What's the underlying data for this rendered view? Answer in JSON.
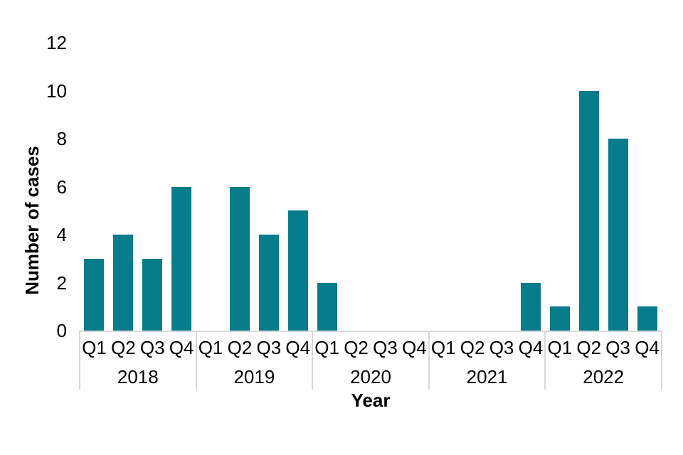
{
  "chart_data": {
    "type": "bar",
    "title": "",
    "ylabel": "Number of cases",
    "xlabel": "Year",
    "ylim": [
      0,
      12
    ],
    "yticks": [
      0,
      2,
      4,
      6,
      8,
      10,
      12
    ],
    "grid": false,
    "legend": false,
    "quarter_labels": [
      "Q1",
      "Q2",
      "Q3",
      "Q4"
    ],
    "years": [
      "2018",
      "2019",
      "2020",
      "2021",
      "2022"
    ],
    "series": [
      {
        "name": "2018",
        "values": [
          3,
          4,
          3,
          6
        ]
      },
      {
        "name": "2019",
        "values": [
          0,
          6,
          4,
          5
        ]
      },
      {
        "name": "2020",
        "values": [
          2,
          0,
          0,
          0
        ]
      },
      {
        "name": "2021",
        "values": [
          0,
          0,
          0,
          2
        ]
      },
      {
        "name": "2022",
        "values": [
          1,
          10,
          8,
          1
        ]
      }
    ],
    "colors": {
      "bar": "#077C8B",
      "axis_line": "#D9D9D9",
      "text": "#000000",
      "background": "#FFFFFF"
    }
  }
}
